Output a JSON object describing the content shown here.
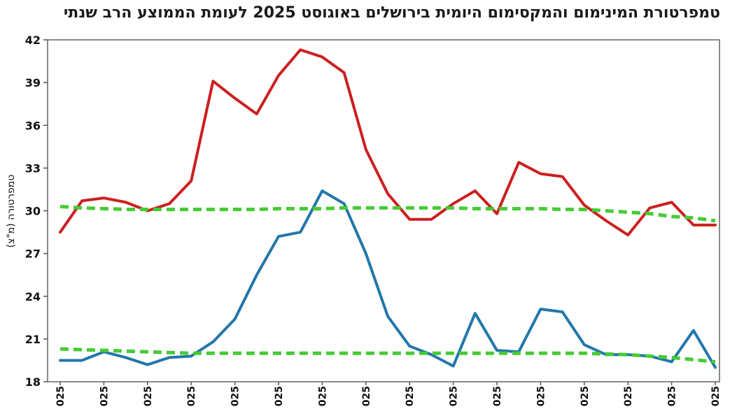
{
  "chart_data": {
    "type": "line",
    "title": "טמפרטורת המינימום והמקסימום היומית בירושלים באוגוסט 2025 לעומת הממוצע הרב שנתי",
    "xlabel": "",
    "ylabel": "טמפרטורה (מ\"צ)",
    "ylim": [
      18,
      42
    ],
    "yticks": [
      18,
      21,
      24,
      27,
      30,
      33,
      36,
      39,
      42
    ],
    "x": [
      1,
      2,
      3,
      4,
      5,
      6,
      7,
      8,
      9,
      10,
      11,
      12,
      13,
      14,
      15,
      16,
      17,
      18,
      19,
      20,
      21,
      22,
      23,
      24,
      25,
      26,
      27,
      28,
      29,
      30,
      31
    ],
    "xtick_labels": [
      "025",
      "025",
      "025",
      "025",
      "025",
      "025",
      "025",
      "025",
      "025",
      "025",
      "025",
      "025",
      "025",
      "025",
      "025",
      "025"
    ],
    "grid": false,
    "legend": "none",
    "series": [
      {
        "color": "#cc1f1f",
        "style": "solid",
        "values": [
          28.5,
          30.7,
          30.9,
          30.6,
          30.0,
          30.5,
          32.1,
          39.1,
          37.9,
          36.8,
          39.5,
          41.3,
          40.8,
          39.7,
          34.3,
          31.2,
          29.4,
          29.4,
          30.5,
          31.4,
          29.8,
          33.4,
          32.6,
          32.4,
          30.4,
          29.3,
          28.3,
          30.2,
          30.6,
          29.0,
          29.0
        ]
      },
      {
        "color": "#2277aa",
        "style": "solid",
        "values": [
          19.5,
          19.5,
          20.1,
          19.7,
          19.2,
          19.7,
          19.8,
          20.8,
          22.4,
          25.5,
          28.2,
          28.5,
          31.4,
          30.5,
          27.0,
          22.6,
          20.5,
          19.9,
          19.1,
          22.8,
          20.2,
          20.1,
          23.1,
          22.9,
          20.6,
          19.9,
          19.9,
          19.8,
          19.4,
          21.6,
          19.0
        ]
      },
      {
        "color": "#44cc33",
        "style": "dashed",
        "values": [
          30.3,
          30.2,
          30.15,
          30.1,
          30.1,
          30.1,
          30.1,
          30.1,
          30.1,
          30.1,
          30.15,
          30.15,
          30.15,
          30.2,
          30.2,
          30.2,
          30.2,
          30.2,
          30.2,
          30.15,
          30.15,
          30.15,
          30.15,
          30.1,
          30.1,
          30.0,
          29.9,
          29.8,
          29.6,
          29.5,
          29.3
        ]
      },
      {
        "color": "#44cc33",
        "style": "dashed",
        "values": [
          20.3,
          20.25,
          20.2,
          20.15,
          20.1,
          20.05,
          20.0,
          20.0,
          20.0,
          20.0,
          20.0,
          20.0,
          20.0,
          20.0,
          20.0,
          20.0,
          20.0,
          20.0,
          20.0,
          20.0,
          20.0,
          20.0,
          20.0,
          20.0,
          20.0,
          19.95,
          19.9,
          19.8,
          19.7,
          19.55,
          19.4
        ]
      }
    ]
  }
}
